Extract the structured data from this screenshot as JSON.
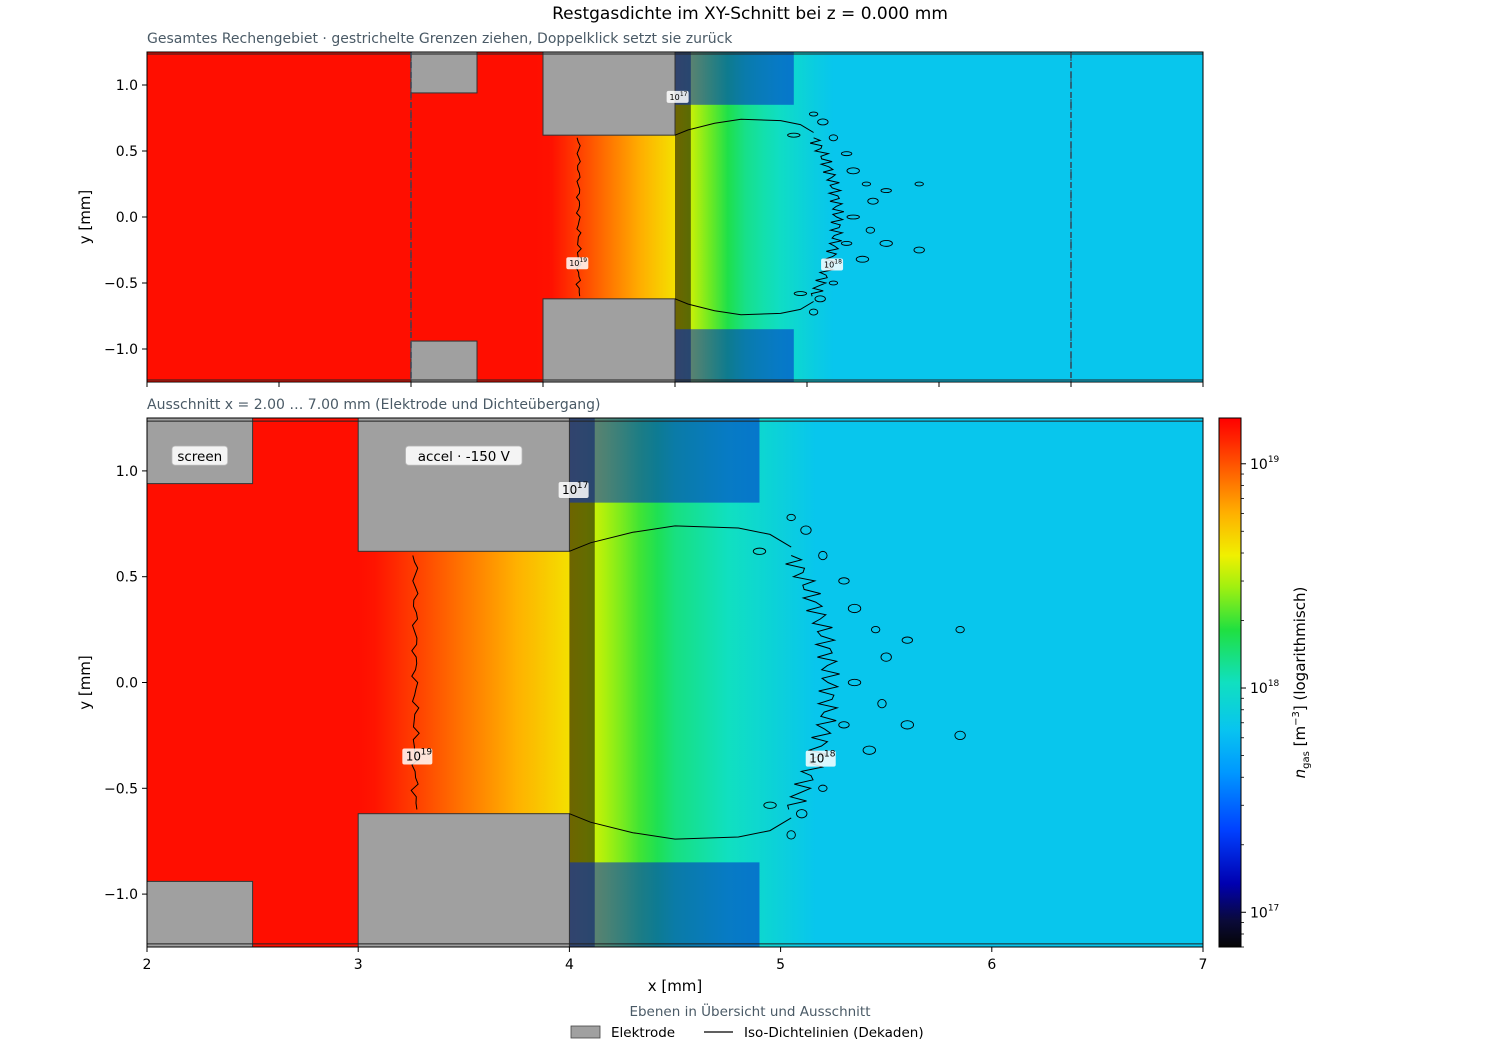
{
  "figure": {
    "title": "Restgasdichte im XY-Schnitt bei z = 0.000 mm",
    "legend_title": "Ebenen in Übersicht und Ausschnitt",
    "legend_items": [
      {
        "kind": "patch",
        "label": "Elektrode",
        "color": "#a0a0a0"
      },
      {
        "kind": "line",
        "label": "Iso-Dichtelinien (Dekaden)",
        "color": "#000000"
      }
    ]
  },
  "chart_data": [
    {
      "type": "heatmap",
      "subtitle": "Gesamtes Rechengebiet  ·  gestrichelte Grenzen ziehen, Doppelklick setzt sie zurück",
      "xlim": [
        0,
        8
      ],
      "ylim": [
        -1.25,
        1.25
      ],
      "xticks": [],
      "yticks": [
        -1.0,
        -0.5,
        0.0,
        0.5,
        1.0
      ],
      "ytick_labels": [
        "−1.0",
        "−0.5",
        "0.0",
        "0.5",
        "1.0"
      ],
      "xtick_marks": [
        0,
        1,
        2,
        3,
        4,
        5,
        6,
        7,
        8
      ],
      "xlabel": "",
      "ylabel": "y [mm]",
      "selection_bounds": [
        2.0,
        7.0
      ],
      "electrodes": [
        {
          "x0": 2.0,
          "x1": 2.5,
          "y0": 0.94,
          "y1": 1.25
        },
        {
          "x0": 2.0,
          "x1": 2.5,
          "y0": -1.25,
          "y1": -0.94
        },
        {
          "x0": 3.0,
          "x1": 4.0,
          "y0": 0.62,
          "y1": 1.25
        },
        {
          "x0": 3.0,
          "x1": 4.0,
          "y0": -1.25,
          "y1": -0.62
        }
      ],
      "contour_labels": [
        {
          "text": "10",
          "sup": "17",
          "x": 4.02,
          "y": 0.91
        },
        {
          "text": "10",
          "sup": "19",
          "x": 3.26,
          "y": -0.35
        },
        {
          "text": "10",
          "sup": "18",
          "x": 5.19,
          "y": -0.36
        }
      ]
    },
    {
      "type": "heatmap",
      "subtitle": "Ausschnitt x = 2.00 … 7.00 mm (Elektrode und Dichteübergang)",
      "xlim": [
        2,
        7
      ],
      "ylim": [
        -1.25,
        1.25
      ],
      "xticks": [
        2,
        3,
        4,
        5,
        6,
        7
      ],
      "xtick_labels": [
        "2",
        "3",
        "4",
        "5",
        "6",
        "7"
      ],
      "yticks": [
        -1.0,
        -0.5,
        0.0,
        0.5,
        1.0
      ],
      "ytick_labels": [
        "−1.0",
        "−0.5",
        "0.0",
        "0.5",
        "1.0"
      ],
      "xlabel": "x [mm]",
      "ylabel": "y [mm]",
      "electrodes": [
        {
          "x0": 2.0,
          "x1": 2.5,
          "y0": 0.94,
          "y1": 1.25
        },
        {
          "x0": 2.0,
          "x1": 2.5,
          "y0": -1.25,
          "y1": -0.94
        },
        {
          "x0": 3.0,
          "x1": 4.0,
          "y0": 0.62,
          "y1": 1.25
        },
        {
          "x0": 3.0,
          "x1": 4.0,
          "y0": -1.25,
          "y1": -0.62
        }
      ],
      "annotations": [
        {
          "text": "screen",
          "x": 2.25,
          "y": 1.07
        },
        {
          "text": "accel · -150 V",
          "x": 3.5,
          "y": 1.07
        }
      ],
      "contour_labels": [
        {
          "text": "10",
          "sup": "17",
          "x": 4.02,
          "y": 0.91
        },
        {
          "text": "10",
          "sup": "19",
          "x": 3.28,
          "y": -0.35
        },
        {
          "text": "10",
          "sup": "18",
          "x": 5.19,
          "y": -0.36
        }
      ],
      "contour_levels": [
        "1e17",
        "1e18",
        "1e19"
      ]
    }
  ],
  "colorbar": {
    "label": "n_gas [m⁻³]  (logarithmisch)",
    "label_main": "n",
    "label_sub": "gas",
    "label_rest": " [m",
    "label_sup": "−3",
    "label_tail": "]  (logarithmisch)",
    "scale": "log",
    "range": [
      7e+16,
      1.6e+19
    ],
    "ticks": [
      {
        "base": "10",
        "sup": "17",
        "value": 1e+17
      },
      {
        "base": "10",
        "sup": "18",
        "value": 1e+18
      },
      {
        "base": "10",
        "sup": "19",
        "value": 1e+19
      }
    ]
  }
}
